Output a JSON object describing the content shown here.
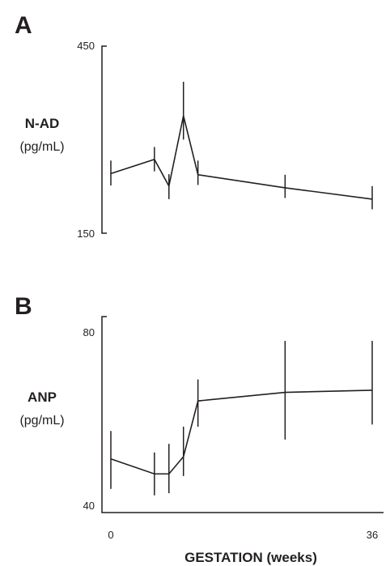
{
  "chart_data": [
    {
      "type": "line",
      "panel_label": "A",
      "ylabel": "N-AD",
      "yunit": "(pg/mL)",
      "ylim": [
        150,
        450
      ],
      "ytick_labels": [
        "450",
        "150"
      ],
      "xlim": [
        0,
        36
      ],
      "x": [
        0,
        6,
        8,
        10,
        12,
        24,
        36
      ],
      "series": [
        {
          "values": [
            258,
            283,
            236,
            360,
            256,
            233,
            213
          ],
          "err_low": [
            237,
            262,
            213,
            318,
            238,
            215,
            195
          ],
          "err_high": [
            281,
            305,
            257,
            420,
            281,
            256,
            236
          ]
        }
      ]
    },
    {
      "type": "line",
      "panel_label": "B",
      "ylabel": "ANP",
      "yunit": "(pg/mL)",
      "ylim": [
        40,
        80
      ],
      "ytick_labels": [
        "80",
        "40"
      ],
      "xlim": [
        0,
        36
      ],
      "x": [
        0,
        6,
        8,
        10,
        12,
        24,
        36
      ],
      "series": [
        {
          "values": [
            51.0,
            47.5,
            47.5,
            51.5,
            64.5,
            66.5,
            67.0
          ],
          "err_low": [
            44.0,
            42.5,
            43.0,
            47.0,
            58.5,
            55.5,
            59.0
          ],
          "err_high": [
            57.5,
            52.5,
            54.5,
            58.5,
            69.5,
            78.5,
            78.5
          ]
        }
      ]
    }
  ],
  "x_axis": {
    "tick_labels": [
      "0",
      "36"
    ],
    "label": "GESTATION (weeks)"
  }
}
